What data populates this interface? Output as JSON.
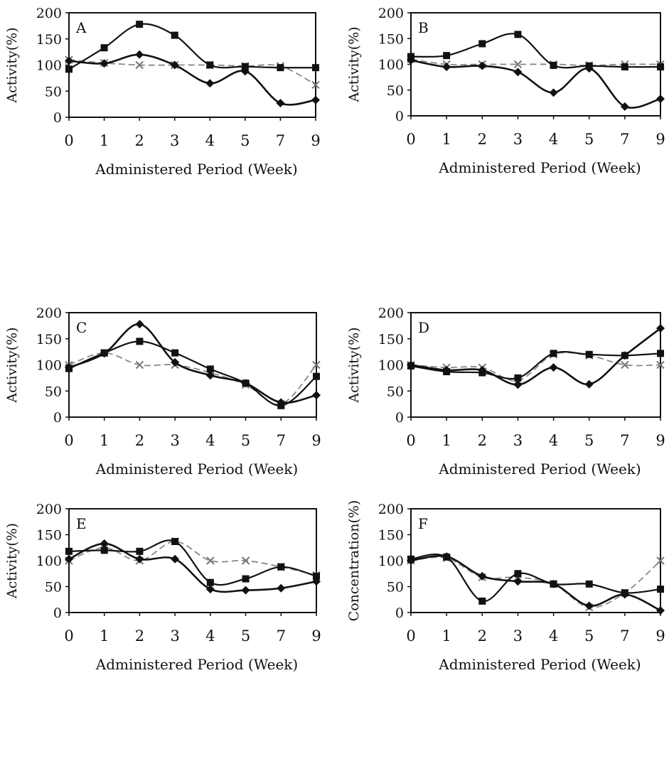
{
  "chart_data": [
    {
      "panel": "A",
      "type": "line",
      "x": [
        "0",
        "1",
        "2",
        "3",
        "4",
        "5",
        "7",
        "9"
      ],
      "ylabel": "Activity(%)",
      "xlabel": "Administered Period (Week)",
      "ylim": [
        0,
        200
      ],
      "yticks": [
        0,
        50,
        100,
        150,
        200
      ],
      "series": [
        {
          "marker": "square",
          "values": [
            92,
            133,
            178,
            157,
            100,
            97,
            95,
            95
          ]
        },
        {
          "marker": "diamond",
          "values": [
            108,
            103,
            120,
            100,
            65,
            88,
            27,
            33
          ]
        },
        {
          "marker": "x",
          "values": [
            110,
            104,
            100,
            100,
            100,
            98,
            98,
            62
          ]
        }
      ]
    },
    {
      "panel": "B",
      "type": "line",
      "x": [
        "0",
        "1",
        "2",
        "3",
        "4",
        "5",
        "7",
        "9"
      ],
      "ylabel": "Activity(%)",
      "xlabel": "Administered Period (Week)",
      "ylim": [
        0,
        200
      ],
      "yticks": [
        0,
        50,
        100,
        150,
        200
      ],
      "series": [
        {
          "marker": "square",
          "values": [
            115,
            117,
            140,
            158,
            98,
            97,
            95,
            95
          ]
        },
        {
          "marker": "diamond",
          "values": [
            108,
            95,
            97,
            85,
            45,
            92,
            18,
            33
          ]
        },
        {
          "marker": "x",
          "values": [
            110,
            100,
            100,
            100,
            100,
            98,
            100,
            100
          ]
        }
      ]
    },
    {
      "panel": "C",
      "type": "line",
      "x": [
        "0",
        "1",
        "2",
        "3",
        "4",
        "5",
        "7",
        "9"
      ],
      "ylabel": "Activity(%)",
      "xlabel": "Administered Period (Week)",
      "ylim": [
        0,
        200
      ],
      "yticks": [
        0,
        50,
        100,
        150,
        200
      ],
      "series": [
        {
          "marker": "square",
          "values": [
            93,
            123,
            145,
            123,
            92,
            65,
            22,
            78
          ]
        },
        {
          "marker": "diamond",
          "values": [
            95,
            122,
            178,
            105,
            80,
            65,
            28,
            42
          ]
        },
        {
          "marker": "x",
          "values": [
            100,
            123,
            100,
            100,
            85,
            62,
            25,
            100
          ]
        }
      ]
    },
    {
      "panel": "D",
      "type": "line",
      "x": [
        "0",
        "1",
        "2",
        "3",
        "4",
        "5",
        "7",
        "9"
      ],
      "ylabel": "Activity(%)",
      "xlabel": "Administered Period (Week)",
      "ylim": [
        0,
        200
      ],
      "yticks": [
        0,
        50,
        100,
        150,
        200
      ],
      "series": [
        {
          "marker": "square",
          "values": [
            98,
            87,
            85,
            75,
            122,
            120,
            118,
            122
          ]
        },
        {
          "marker": "diamond",
          "values": [
            100,
            90,
            90,
            62,
            95,
            63,
            118,
            170
          ]
        },
        {
          "marker": "x",
          "values": [
            100,
            95,
            95,
            70,
            120,
            118,
            100,
            100
          ]
        }
      ]
    },
    {
      "panel": "E",
      "type": "line",
      "x": [
        "0",
        "1",
        "2",
        "3",
        "4",
        "5",
        "7",
        "9"
      ],
      "ylabel": "Activity(%)",
      "xlabel": "Administered Period (Week)",
      "ylim": [
        0,
        200
      ],
      "yticks": [
        0,
        50,
        100,
        150,
        200
      ],
      "series": [
        {
          "marker": "square",
          "values": [
            118,
            120,
            118,
            137,
            58,
            65,
            88,
            70
          ]
        },
        {
          "marker": "diamond",
          "values": [
            103,
            133,
            103,
            103,
            45,
            43,
            47,
            60
          ]
        },
        {
          "marker": "x",
          "values": [
            100,
            125,
            100,
            137,
            100,
            100,
            88,
            72
          ]
        }
      ]
    },
    {
      "panel": "F",
      "type": "line",
      "x": [
        "0",
        "1",
        "2",
        "3",
        "4",
        "5",
        "7",
        "9"
      ],
      "ylabel": "Concentration(%)",
      "xlabel": "Administered Period (Week)",
      "ylim": [
        0,
        200
      ],
      "yticks": [
        0,
        50,
        100,
        150,
        200
      ],
      "series": [
        {
          "marker": "square",
          "values": [
            103,
            107,
            22,
            75,
            55,
            55,
            38,
            45
          ]
        },
        {
          "marker": "diamond",
          "values": [
            100,
            108,
            70,
            60,
            55,
            13,
            35,
            4
          ]
        },
        {
          "marker": "x",
          "values": [
            100,
            105,
            68,
            68,
            55,
            10,
            38,
            100
          ]
        }
      ]
    }
  ]
}
